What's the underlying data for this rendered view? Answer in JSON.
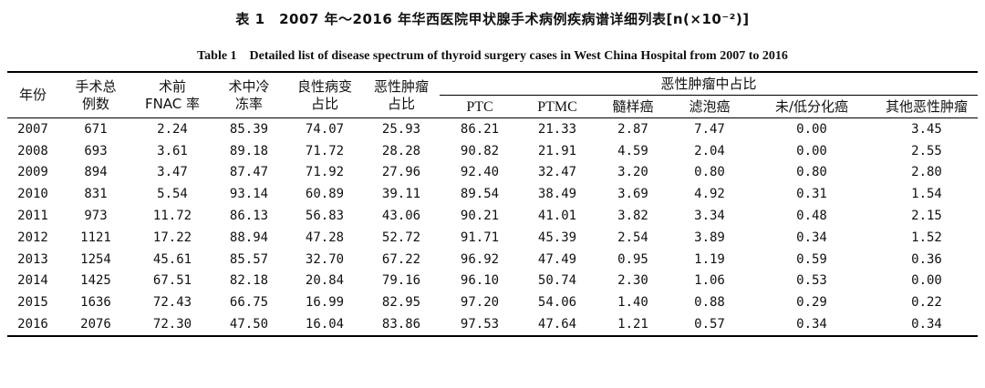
{
  "title_cn": "表 1　2007 年～2016 年华西医院甲状腺手术病例疾病谱详细列表[n(×10⁻²)]",
  "title_en": "Table 1　Detailed list of disease spectrum of thyroid surgery cases in West China Hospital from 2007 to 2016",
  "headers": {
    "year": "年份",
    "total": [
      "手术总",
      "例数"
    ],
    "fnac": [
      "术前",
      "FNAC 率"
    ],
    "frozen": [
      "术中冷",
      "冻率"
    ],
    "benign": [
      "良性病变",
      "占比"
    ],
    "malignant": [
      "恶性肿瘤",
      "占比"
    ],
    "group": "恶性肿瘤中占比",
    "sub": [
      "PTC",
      "PTMC",
      "髓样癌",
      "滤泡癌",
      "未/低分化癌",
      "其他恶性肿瘤"
    ]
  },
  "rows": [
    [
      "2007",
      "671",
      "2.24",
      "85.39",
      "74.07",
      "25.93",
      "86.21",
      "21.33",
      "2.87",
      "7.47",
      "0.00",
      "3.45"
    ],
    [
      "2008",
      "693",
      "3.61",
      "89.18",
      "71.72",
      "28.28",
      "90.82",
      "21.91",
      "4.59",
      "2.04",
      "0.00",
      "2.55"
    ],
    [
      "2009",
      "894",
      "3.47",
      "87.47",
      "71.92",
      "27.96",
      "92.40",
      "32.47",
      "3.20",
      "0.80",
      "0.80",
      "2.80"
    ],
    [
      "2010",
      "831",
      "5.54",
      "93.14",
      "60.89",
      "39.11",
      "89.54",
      "38.49",
      "3.69",
      "4.92",
      "0.31",
      "1.54"
    ],
    [
      "2011",
      "973",
      "11.72",
      "86.13",
      "56.83",
      "43.06",
      "90.21",
      "41.01",
      "3.82",
      "3.34",
      "0.48",
      "2.15"
    ],
    [
      "2012",
      "1121",
      "17.22",
      "88.94",
      "47.28",
      "52.72",
      "91.71",
      "45.39",
      "2.54",
      "3.89",
      "0.34",
      "1.52"
    ],
    [
      "2013",
      "1254",
      "45.61",
      "85.57",
      "32.70",
      "67.22",
      "96.92",
      "47.49",
      "0.95",
      "1.19",
      "0.59",
      "0.36"
    ],
    [
      "2014",
      "1425",
      "67.51",
      "82.18",
      "20.84",
      "79.16",
      "96.10",
      "50.74",
      "2.30",
      "1.06",
      "0.53",
      "0.00"
    ],
    [
      "2015",
      "1636",
      "72.43",
      "66.75",
      "16.99",
      "82.95",
      "97.20",
      "54.06",
      "1.40",
      "0.88",
      "0.29",
      "0.22"
    ],
    [
      "2016",
      "2076",
      "72.30",
      "47.50",
      "16.04",
      "83.86",
      "97.53",
      "47.64",
      "1.21",
      "0.57",
      "0.34",
      "0.34"
    ]
  ]
}
